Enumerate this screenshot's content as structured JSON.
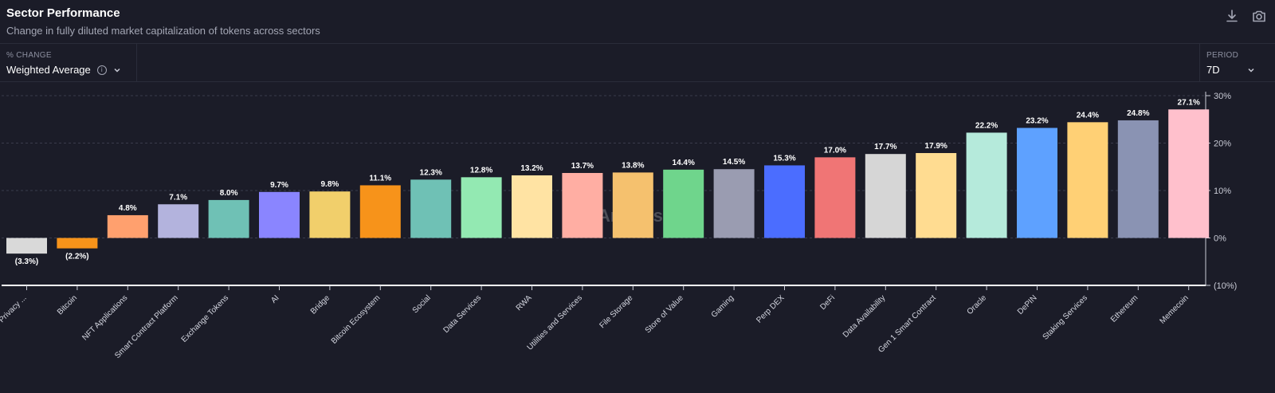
{
  "header": {
    "title": "Sector Performance",
    "subtitle": "Change in fully diluted market capitalization of tokens across sectors"
  },
  "icons": {
    "download": "download-icon",
    "camera": "camera-icon",
    "info": "info-icon",
    "chevron": "chevron-down-icon"
  },
  "controls": {
    "metric_label": "% CHANGE",
    "metric_value": "Weighted Average",
    "period_label": "PERIOD",
    "period_value": "7D"
  },
  "watermark": "Artemis",
  "chart_data": {
    "type": "bar",
    "title": "Sector Performance",
    "categories": [
      "Privacy ...",
      "Bitcoin",
      "NFT Applications",
      "Smart Contract Platform",
      "Exchange Tokens",
      "AI",
      "Bridge",
      "Bitcoin Ecosystem",
      "Social",
      "Data Services",
      "RWA",
      "Utilities and Services",
      "File Storage",
      "Store of Value",
      "Gaming",
      "Perp DEX",
      "DeFi",
      "Data Availability",
      "Gen 1 Smart Contract",
      "Oracle",
      "DePIN",
      "Staking Services",
      "Ethereum",
      "Memecoin"
    ],
    "values": [
      -3.3,
      -2.2,
      4.8,
      7.1,
      8.0,
      9.7,
      9.8,
      11.1,
      12.3,
      12.8,
      13.2,
      13.7,
      13.8,
      14.4,
      14.5,
      15.3,
      17.0,
      17.7,
      17.9,
      22.2,
      23.2,
      24.4,
      24.8,
      27.1
    ],
    "labels": [
      "(3.3%)",
      "(2.2%)",
      "4.8%",
      "7.1%",
      "8.0%",
      "9.7%",
      "9.8%",
      "11.1%",
      "12.3%",
      "12.8%",
      "13.2%",
      "13.7%",
      "13.8%",
      "14.4%",
      "14.5%",
      "15.3%",
      "17.0%",
      "17.7%",
      "17.9%",
      "22.2%",
      "23.2%",
      "24.4%",
      "24.8%",
      "27.1%"
    ],
    "colors": [
      "#d9d9d9",
      "#f7931a",
      "#ffa06e",
      "#b3b3dd",
      "#6fc1b5",
      "#8a85ff",
      "#f1cf6b",
      "#f7931a",
      "#6fc1b5",
      "#93e9b2",
      "#ffe3a3",
      "#ffaea3",
      "#f5c16e",
      "#6fd58c",
      "#9a9cb1",
      "#4b6dff",
      "#f07575",
      "#d6d6d6",
      "#ffdc91",
      "#b5eadb",
      "#5ea1ff",
      "#ffd075",
      "#8a93b3",
      "#ffc0cc"
    ],
    "yticks": [
      "30%",
      "20%",
      "10%",
      "0%",
      "(10%)"
    ],
    "ylim": [
      -10,
      30
    ],
    "grid": true
  }
}
